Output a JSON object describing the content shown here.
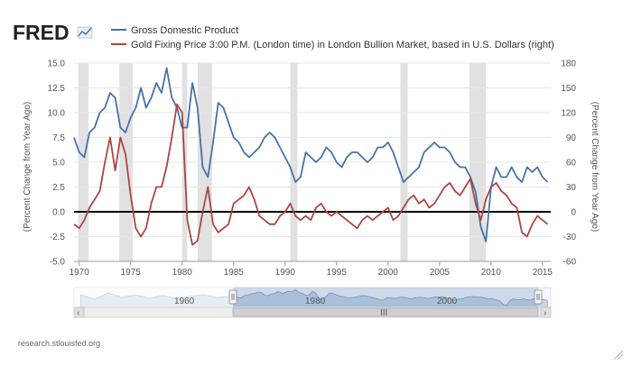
{
  "brand": {
    "name": "FRED"
  },
  "footer": {
    "source": "research.stlouisfed.org"
  },
  "navigator": {
    "labels": [
      "1960",
      "1980",
      "2000"
    ],
    "scroll_grip": "III",
    "left_arrow": "‹",
    "right_arrow": "›"
  },
  "chart_data": {
    "type": "line",
    "grid": "horizontal",
    "legend_position": "top",
    "x_ticks": [
      1970,
      1975,
      1980,
      1985,
      1990,
      1995,
      2000,
      2005,
      2010,
      2015
    ],
    "xlim": [
      1969.5,
      2015.8
    ],
    "left_axis": {
      "label": "(Percent Change from Year Ago)",
      "ylim": [
        -5.0,
        15.0
      ],
      "ticks": [
        "-5.0",
        "-2.5",
        "0.0",
        "2.5",
        "5.0",
        "7.5",
        "10.0",
        "12.5",
        "15.0"
      ]
    },
    "right_axis": {
      "label": "(Percent Change from Year Ago)",
      "ylim": [
        -60,
        180
      ],
      "ticks": [
        "-60",
        "-30",
        "0",
        "30",
        "60",
        "90",
        "120",
        "150",
        "180"
      ]
    },
    "recessions": [
      [
        1969.9,
        1970.9
      ],
      [
        1973.9,
        1975.2
      ],
      [
        1980.0,
        1980.5
      ],
      [
        1981.5,
        1982.9
      ],
      [
        1990.5,
        1991.2
      ],
      [
        2001.2,
        2001.9
      ],
      [
        2007.9,
        2009.5
      ]
    ],
    "series": [
      {
        "name": "Gross Domestic Product",
        "axis": "left",
        "color": "#4572a7",
        "x": [
          1969.5,
          1970.0,
          1970.5,
          1971.0,
          1971.5,
          1972.0,
          1972.5,
          1973.0,
          1973.5,
          1974.0,
          1974.5,
          1975.0,
          1975.5,
          1976.0,
          1976.5,
          1977.0,
          1977.5,
          1978.0,
          1978.5,
          1979.0,
          1979.5,
          1980.0,
          1980.5,
          1981.0,
          1981.5,
          1982.0,
          1982.5,
          1983.0,
          1983.5,
          1984.0,
          1984.5,
          1985.0,
          1985.5,
          1986.0,
          1986.5,
          1987.0,
          1987.5,
          1988.0,
          1988.5,
          1989.0,
          1989.5,
          1990.0,
          1990.5,
          1991.0,
          1991.5,
          1992.0,
          1992.5,
          1993.0,
          1993.5,
          1994.0,
          1994.5,
          1995.0,
          1995.5,
          1996.0,
          1996.5,
          1997.0,
          1997.5,
          1998.0,
          1998.5,
          1999.0,
          1999.5,
          2000.0,
          2000.5,
          2001.0,
          2001.5,
          2002.0,
          2002.5,
          2003.0,
          2003.5,
          2004.0,
          2004.5,
          2005.0,
          2005.5,
          2006.0,
          2006.5,
          2007.0,
          2007.5,
          2008.0,
          2008.5,
          2009.0,
          2009.5,
          2010.0,
          2010.5,
          2011.0,
          2011.5,
          2012.0,
          2012.5,
          2013.0,
          2013.5,
          2014.0,
          2014.5,
          2015.0,
          2015.5
        ],
        "values": [
          7.5,
          6.0,
          5.5,
          8.0,
          8.5,
          10.0,
          10.5,
          12.0,
          11.5,
          8.5,
          8.0,
          9.5,
          10.5,
          12.5,
          10.5,
          11.5,
          13.0,
          12.0,
          14.5,
          11.5,
          10.5,
          8.5,
          8.5,
          13.0,
          10.5,
          4.5,
          3.5,
          7.0,
          11.0,
          10.5,
          9.0,
          7.5,
          7.0,
          6.0,
          5.5,
          6.0,
          6.5,
          7.5,
          8.0,
          7.5,
          6.5,
          5.5,
          4.5,
          3.0,
          3.5,
          6.0,
          5.5,
          5.0,
          5.5,
          6.5,
          6.0,
          5.0,
          4.5,
          5.5,
          6.0,
          6.0,
          5.5,
          5.0,
          5.5,
          6.5,
          6.5,
          7.0,
          6.0,
          4.5,
          3.0,
          3.5,
          4.0,
          4.5,
          6.0,
          6.5,
          7.0,
          6.5,
          6.5,
          6.0,
          5.0,
          4.5,
          4.5,
          3.5,
          2.0,
          -1.5,
          -3.0,
          2.5,
          4.5,
          3.5,
          3.5,
          4.5,
          3.5,
          3.0,
          4.5,
          4.0,
          4.5,
          3.5,
          3.0
        ]
      },
      {
        "name": "Gold Fixing Price 3:00 P.M. (London time) in London Bullion Market, based in U.S. Dollars (right)",
        "axis": "right",
        "color": "#aa4643",
        "x": [
          1969.5,
          1970.0,
          1970.5,
          1971.0,
          1971.5,
          1972.0,
          1972.5,
          1973.0,
          1973.5,
          1974.0,
          1974.5,
          1975.0,
          1975.5,
          1976.0,
          1976.5,
          1977.0,
          1977.5,
          1978.0,
          1978.5,
          1979.0,
          1979.5,
          1980.0,
          1980.5,
          1981.0,
          1981.5,
          1982.0,
          1982.5,
          1983.0,
          1983.5,
          1984.0,
          1984.5,
          1985.0,
          1985.5,
          1986.0,
          1986.5,
          1987.0,
          1987.5,
          1988.0,
          1988.5,
          1989.0,
          1989.5,
          1990.0,
          1990.5,
          1991.0,
          1991.5,
          1992.0,
          1992.5,
          1993.0,
          1993.5,
          1994.0,
          1994.5,
          1995.0,
          1995.5,
          1996.0,
          1996.5,
          1997.0,
          1997.5,
          1998.0,
          1998.5,
          1999.0,
          1999.5,
          2000.0,
          2000.5,
          2001.0,
          2001.5,
          2002.0,
          2002.5,
          2003.0,
          2003.5,
          2004.0,
          2004.5,
          2005.0,
          2005.5,
          2006.0,
          2006.5,
          2007.0,
          2007.5,
          2008.0,
          2008.5,
          2009.0,
          2009.5,
          2010.0,
          2010.5,
          2011.0,
          2011.5,
          2012.0,
          2012.5,
          2013.0,
          2013.5,
          2014.0,
          2014.5,
          2015.0,
          2015.5
        ],
        "values": [
          -15,
          -20,
          -10,
          5,
          15,
          25,
          60,
          90,
          50,
          90,
          70,
          20,
          -20,
          -30,
          -20,
          10,
          30,
          30,
          55,
          90,
          130,
          120,
          -10,
          -40,
          -35,
          0,
          30,
          -15,
          -25,
          -20,
          -15,
          10,
          15,
          20,
          30,
          15,
          -5,
          -10,
          -15,
          -15,
          -5,
          0,
          10,
          -5,
          -10,
          -5,
          -10,
          5,
          10,
          0,
          -5,
          0,
          -5,
          -10,
          -15,
          -20,
          -10,
          -5,
          -10,
          -5,
          0,
          5,
          -10,
          -5,
          5,
          15,
          20,
          10,
          15,
          5,
          10,
          20,
          30,
          35,
          25,
          20,
          30,
          40,
          10,
          -10,
          15,
          30,
          35,
          25,
          20,
          10,
          5,
          -25,
          -30,
          -15,
          -5,
          -10,
          -15
        ]
      }
    ]
  }
}
